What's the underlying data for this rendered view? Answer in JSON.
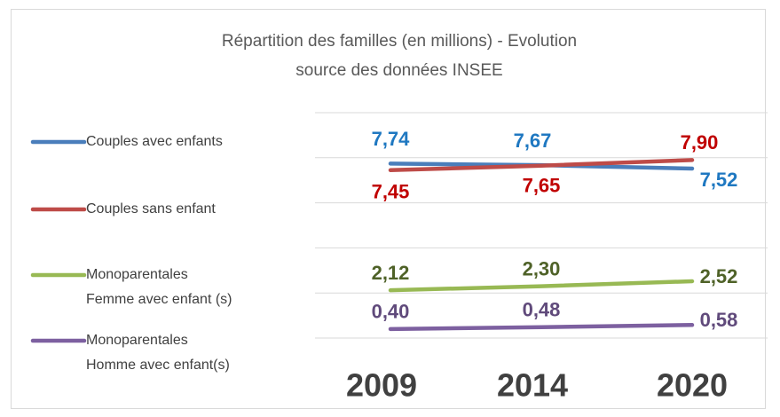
{
  "chart_data": {
    "type": "line",
    "title": "Répartition des familles (en millions) - Evolution",
    "subtitle": "source des données INSEE",
    "categories": [
      "2009",
      "2014",
      "2020"
    ],
    "series": [
      {
        "name": "Couples avec enfants",
        "color": "#4a7ebb",
        "label_color": "#1f78c1",
        "values": [
          7.74,
          7.67,
          7.52
        ],
        "value_labels": [
          "7,74",
          "7,67",
          "7,52"
        ]
      },
      {
        "name": "Couples sans enfant",
        "color": "#be4b48",
        "label_color": "#c00000",
        "values": [
          7.45,
          7.65,
          7.9
        ],
        "value_labels": [
          "7,45",
          "7,65",
          "7,90"
        ]
      },
      {
        "name": "Monoparentales\nFemme avec enfant (s)",
        "color": "#98b954",
        "label_color": "#4f6228",
        "values": [
          2.12,
          2.3,
          2.52
        ],
        "value_labels": [
          "2,12",
          "2,30",
          "2,52"
        ]
      },
      {
        "name": "Monoparentales\nHomme avec enfant(s)",
        "color": "#7d60a0",
        "label_color": "#604a7b",
        "values": [
          0.4,
          0.48,
          0.58
        ],
        "value_labels": [
          "0,40",
          "0,48",
          "0,58"
        ]
      }
    ],
    "ylim": [
      0,
      10
    ],
    "yticks": [
      0,
      2,
      4,
      6,
      8,
      10
    ],
    "grid": true,
    "legend": "left"
  }
}
